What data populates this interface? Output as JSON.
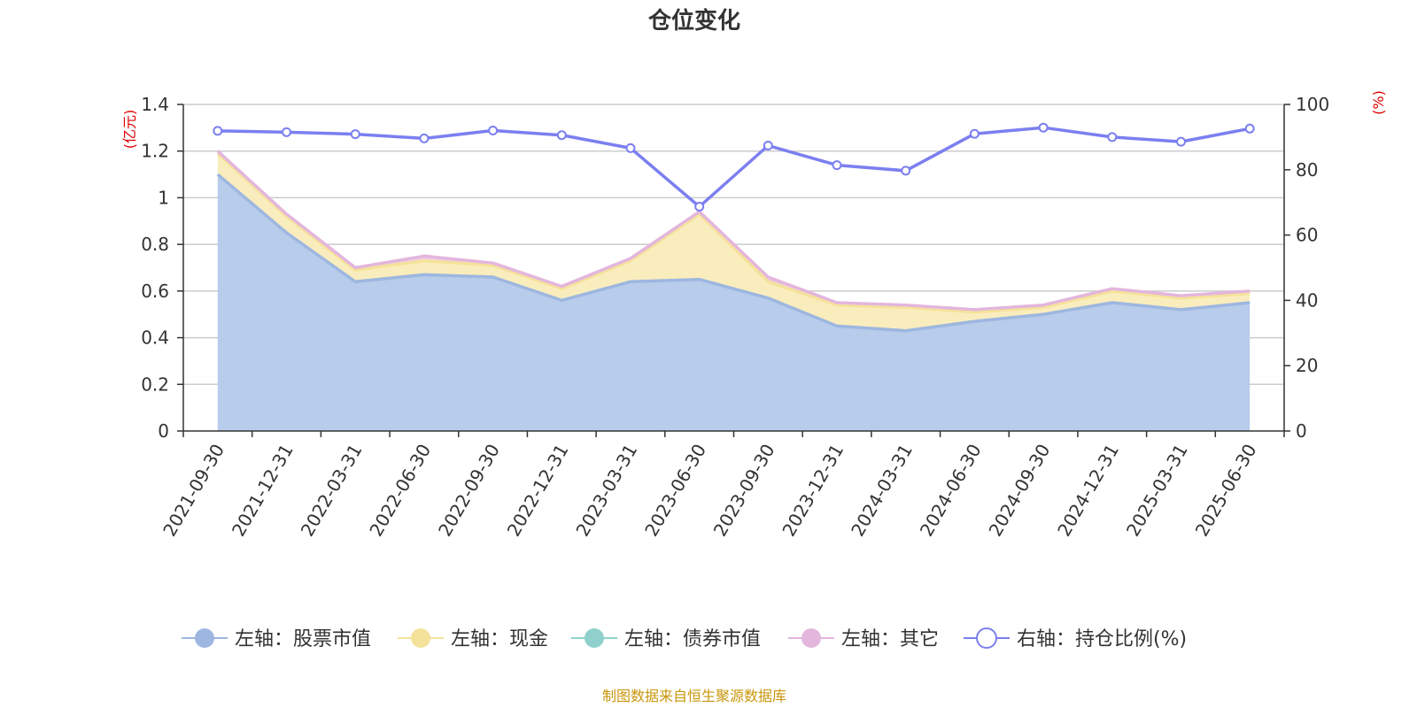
{
  "chart_data": {
    "type": "area",
    "title": "仓位变化",
    "left_unit": "(亿元)",
    "right_unit": "(%)",
    "left_ticks": [
      "0",
      "0.2",
      "0.4",
      "0.6",
      "0.8",
      "1",
      "1.2",
      "1.4"
    ],
    "right_ticks": [
      "0",
      "20",
      "40",
      "60",
      "80",
      "100"
    ],
    "ylim_left": [
      0,
      1.4
    ],
    "ylim_right": [
      0,
      100
    ],
    "categories": [
      "2021-09-30",
      "2021-12-31",
      "2022-03-31",
      "2022-06-30",
      "2022-09-30",
      "2022-12-31",
      "2023-03-31",
      "2023-06-30",
      "2023-09-30",
      "2023-12-31",
      "2024-03-31",
      "2024-06-30",
      "2024-09-30",
      "2024-12-31",
      "2025-03-31",
      "2025-06-30"
    ],
    "series": [
      {
        "name": "左轴：股票市值",
        "axis": "left",
        "stack": true,
        "color": "#9db7e0",
        "fill": "#b8cceb",
        "values": [
          1.1,
          0.85,
          0.64,
          0.67,
          0.66,
          0.56,
          0.64,
          0.65,
          0.57,
          0.45,
          0.43,
          0.47,
          0.5,
          0.55,
          0.52,
          0.55
        ]
      },
      {
        "name": "左轴：现金",
        "axis": "left",
        "stack": true,
        "color": "#f5e29a",
        "fill": "#faedbd",
        "values": [
          0.09,
          0.07,
          0.05,
          0.06,
          0.05,
          0.05,
          0.09,
          0.28,
          0.07,
          0.09,
          0.1,
          0.04,
          0.03,
          0.05,
          0.05,
          0.04
        ]
      },
      {
        "name": "左轴：债券市值",
        "axis": "left",
        "stack": true,
        "color": "#8fd0cd",
        "fill": "#b9e3e1",
        "values": [
          0,
          0,
          0,
          0,
          0,
          0,
          0,
          0,
          0,
          0,
          0,
          0,
          0,
          0,
          0,
          0
        ]
      },
      {
        "name": "左轴：其它",
        "axis": "left",
        "stack": true,
        "color": "#e3b6dd",
        "fill": "#eecbe8",
        "values": [
          0.01,
          0.01,
          0.01,
          0.02,
          0.01,
          0.01,
          0.01,
          0.01,
          0.02,
          0.01,
          0.01,
          0.01,
          0.01,
          0.01,
          0.01,
          0.01
        ]
      },
      {
        "name": "右轴：持仓比例(%)",
        "axis": "right",
        "stack": false,
        "color": "#7b7ff0",
        "values": [
          91.9,
          91.5,
          90.9,
          89.6,
          92.0,
          90.6,
          86.6,
          68.7,
          87.4,
          81.4,
          79.7,
          91.0,
          92.9,
          90.0,
          88.6,
          92.6
        ]
      }
    ],
    "grid": true,
    "legend_position": "bottom"
  },
  "footer": {
    "source": "制图数据来自恒生聚源数据库"
  }
}
